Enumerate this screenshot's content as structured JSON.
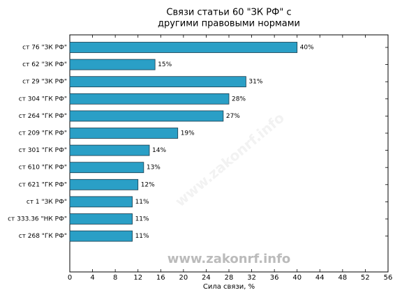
{
  "chart_data": {
    "type": "barh",
    "title": [
      "Связи статьи 60 \"ЗК РФ\" с",
      "другими правовыми нормами"
    ],
    "categories": [
      "ст 76 \"ЗК РФ\"",
      "ст 62 \"ЗК РФ\"",
      "ст 29 \"ЗК РФ\"",
      "ст 304 \"ГК РФ\"",
      "ст 264 \"ГК РФ\"",
      "ст 209 \"ГК РФ\"",
      "ст 301 \"ГК РФ\"",
      "ст 610 \"ГК РФ\"",
      "ст 621 \"ГК РФ\"",
      "ст 1 \"ЗК РФ\"",
      "ст 333.36 \"НК РФ\"",
      "ст 268 \"ГК РФ\""
    ],
    "values": [
      40,
      15,
      31,
      28,
      27,
      19,
      14,
      13,
      12,
      11,
      11,
      11
    ],
    "value_labels": [
      "40%",
      "15%",
      "31%",
      "28%",
      "27%",
      "19%",
      "14%",
      "13%",
      "12%",
      "11%",
      "11%",
      "11%"
    ],
    "color": "#2a9fc6",
    "xlabel": "Сила связи, %",
    "xlim": [
      0,
      56
    ],
    "xticks": [
      0,
      4,
      8,
      12,
      16,
      20,
      24,
      28,
      32,
      36,
      40,
      44,
      48,
      52,
      56
    ],
    "watermark": "www.zakonrf.info"
  }
}
